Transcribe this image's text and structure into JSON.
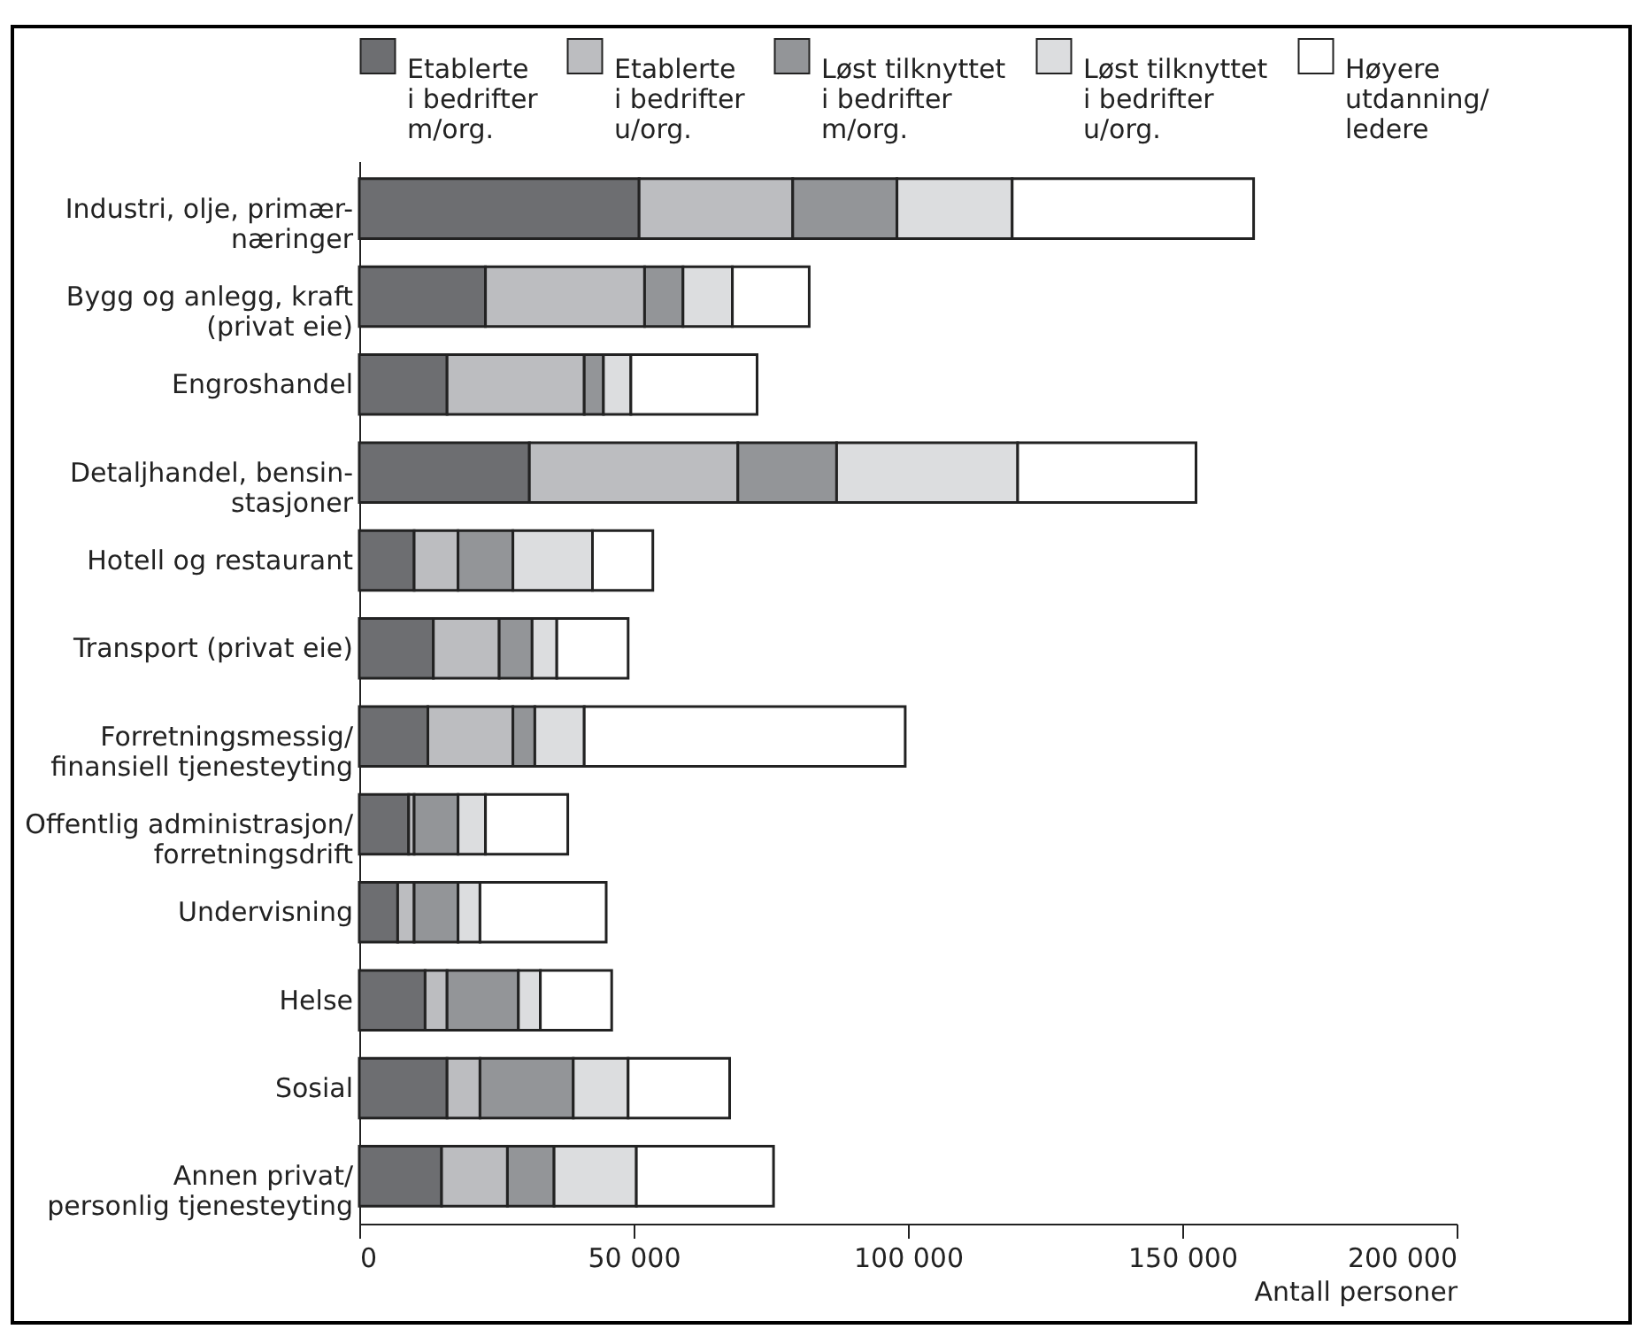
{
  "chart_data": {
    "type": "bar",
    "orientation": "horizontal",
    "stacked": true,
    "xlabel": "Antall personer",
    "categories": [
      "Industri, olje, primær-\nnæringer",
      "Bygg og anlegg, kraft\n(privat eie)",
      "Engroshandel",
      "Detaljhandel, bensin-\nstasjoner",
      "Hotell og restaurant",
      "Transport (privat eie)",
      "Forretningsmessig/\nfinansiell tjenesteyting",
      "Offentlig administrasjon/\nforretningsdrift",
      "Undervisning",
      "Helse",
      "Sosial",
      "Annen privat/\npersonlig tjenesteyting"
    ],
    "series": [
      {
        "name": "Etablerte\ni bedrifter\nm/org.",
        "color": "#6d6e71",
        "values": [
          51000,
          23000,
          16000,
          31000,
          10000,
          13500,
          12500,
          9000,
          7000,
          12000,
          16000,
          15000
        ]
      },
      {
        "name": "Etablerte\ni bedrifter\nu/org.",
        "color": "#bcbdc0",
        "values": [
          28000,
          29000,
          25000,
          38000,
          8000,
          12000,
          15500,
          1000,
          3000,
          4000,
          6000,
          12000
        ]
      },
      {
        "name": "Løst tilknyttet\ni bedrifter\nm/org.",
        "color": "#939598",
        "values": [
          19000,
          7000,
          3500,
          18000,
          10000,
          6000,
          4000,
          8000,
          8000,
          13000,
          17000,
          8500
        ]
      },
      {
        "name": "Løst tilknyttet\ni bedrifter\nu/org.",
        "color": "#dcdddf",
        "values": [
          21000,
          9000,
          5000,
          33000,
          14500,
          4500,
          9000,
          5000,
          4000,
          4000,
          10000,
          15000
        ]
      },
      {
        "name": "Høyere\nutdanning/\nledere",
        "color": "#ffffff",
        "values": [
          44000,
          14000,
          23000,
          32500,
          11000,
          13000,
          58500,
          15000,
          23000,
          13000,
          18500,
          25000
        ]
      }
    ],
    "xlim": [
      0,
      200000
    ],
    "xticks": [
      0,
      {
        "value": 50000,
        "label": "50 000"
      },
      {
        "value": 100000,
        "label": "100 000"
      },
      {
        "value": 150000,
        "label": "150 000"
      },
      {
        "value": 200000,
        "label": "200 000"
      }
    ],
    "grid": false,
    "legend": "top"
  }
}
